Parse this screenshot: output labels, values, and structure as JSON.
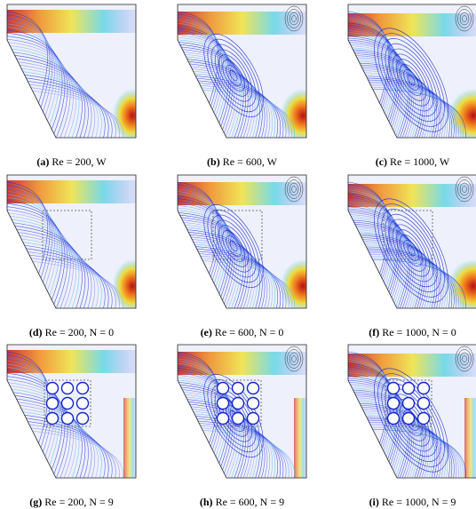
{
  "figure": {
    "panels": [
      {
        "label": "(a)",
        "caption": "Re = 200, W"
      },
      {
        "label": "(b)",
        "caption": "Re = 600, W"
      },
      {
        "label": "(c)",
        "caption": "Re = 1000, W"
      },
      {
        "label": "(d)",
        "caption": "Re = 200, N = 0"
      },
      {
        "label": "(e)",
        "caption": "Re = 600, N = 0"
      },
      {
        "label": "(f)",
        "caption": "Re = 1000, N = 0"
      },
      {
        "label": "(g)",
        "caption": "Re = 200, N = 9"
      },
      {
        "label": "(h)",
        "caption": "Re = 600, N = 9"
      },
      {
        "label": "(i)",
        "caption": "Re = 1000, N = 9"
      }
    ]
  }
}
